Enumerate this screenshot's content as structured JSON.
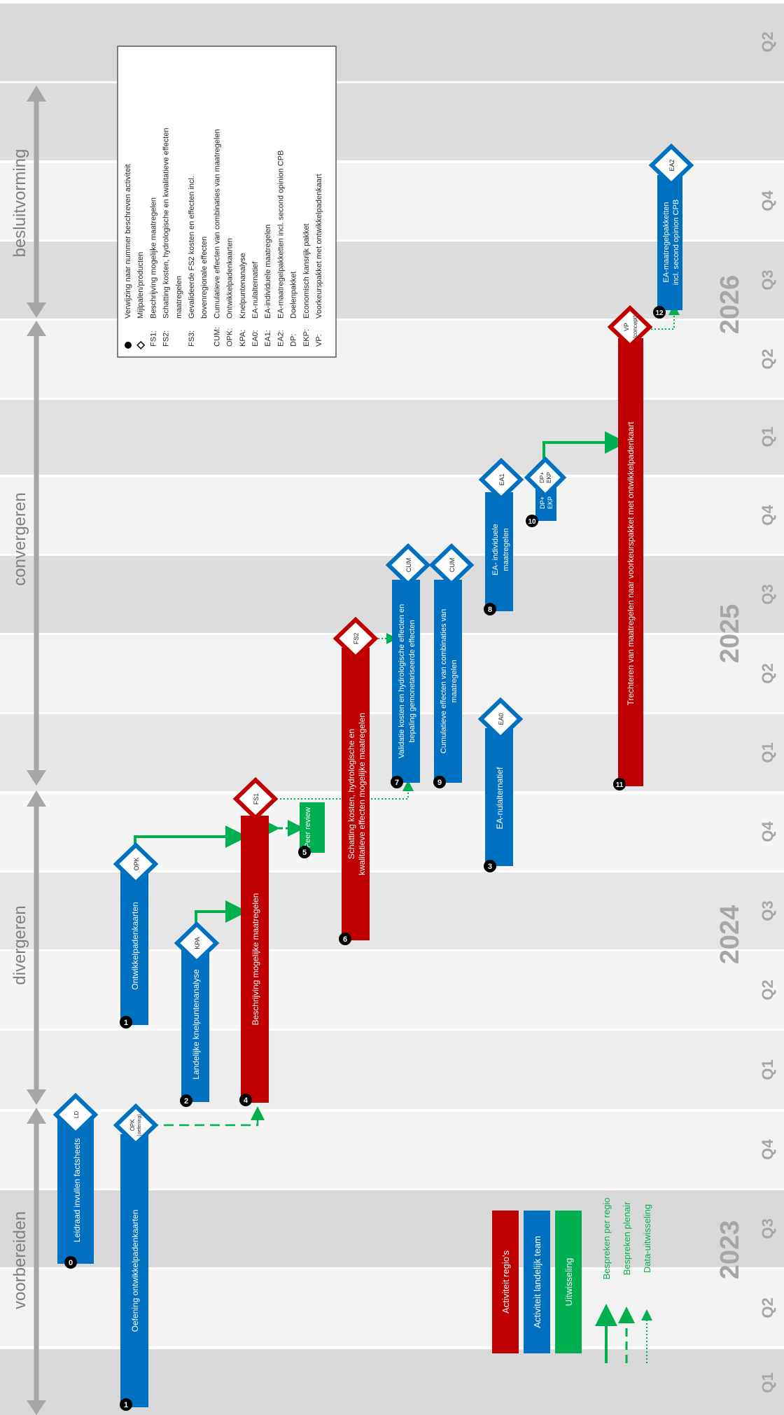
{
  "phases": [
    {
      "label": "voorbereiden"
    },
    {
      "label": "divergeren"
    },
    {
      "label": "convergeren"
    },
    {
      "label": "besluitvorming"
    }
  ],
  "years": [
    {
      "label": "2023"
    },
    {
      "label": "2024"
    },
    {
      "label": "2025"
    },
    {
      "label": "2026"
    }
  ],
  "quarters": [
    "Q1",
    "Q2",
    "Q3",
    "Q4",
    "Q1",
    "Q2",
    "Q3",
    "Q4",
    "Q1",
    "Q2",
    "Q3",
    "Q4",
    "Q1",
    "Q2",
    "Q3",
    "Q4",
    "Q2"
  ],
  "legend_box": {
    "items": [
      {
        "key": "",
        "text": "Verwijzing naar nummer beschreven activiteit",
        "icon": "numbered-circle-icon"
      },
      {
        "key": "",
        "text": "Mijlpalen/producten",
        "icon": "diamond-icon"
      },
      {
        "key": "FS1:",
        "text": "Beschrijving mogelijke maatregelen"
      },
      {
        "key": "FS2:",
        "text": "Schatting kosten, hydrologische en kwalitatieve effecten"
      },
      {
        "key": "",
        "text": "maatregelen"
      },
      {
        "key": "FS3:",
        "text": "Gevalideerde FS2 kosten en effecten  incl."
      },
      {
        "key": "",
        "text": "bovenregionale effecten"
      },
      {
        "key": "CUM:",
        "text": "Cumulatieve effecten  van combinaties van maatregelen"
      },
      {
        "key": "OPK:",
        "text": "Ontwikkelpadenkaarten"
      },
      {
        "key": "KPA:",
        "text": "Knelpuntenanalyse"
      },
      {
        "key": "EA0:",
        "text": "EA-nulalternatief"
      },
      {
        "key": "EA1:",
        "text": "EA-individuele maatregelen"
      },
      {
        "key": "EA2:",
        "text": "EA-maatregelpakketten  incl. second opinion CPB"
      },
      {
        "key": "DP:",
        "text": "Doelenpakket"
      },
      {
        "key": "EKP:",
        "text": "Economisch kansrijk pakket"
      },
      {
        "key": "VP:",
        "text": "Voorkeurspakket met ontwikkelpadenkaart"
      }
    ]
  },
  "activity_legend": [
    {
      "label": "Activiteit regio's",
      "color": "#C00000"
    },
    {
      "label": "Activiteit landelijk team",
      "color": "#0070C0"
    },
    {
      "label": "Uitwisseling",
      "color": "#00B050"
    }
  ],
  "line_legend": [
    {
      "label": "Bespreken per regio",
      "style": "solid"
    },
    {
      "label": "Bespreken plenair",
      "style": "dashed"
    },
    {
      "label": "Data-uitwisseling",
      "style": "dotted"
    }
  ],
  "activities": [
    {
      "num": "0",
      "label": "Leidraad invullen factsheets",
      "milestone": "LD",
      "color": "#0070C0"
    },
    {
      "num": "1",
      "label": "Oefening ontwikkelpadenkaarten",
      "milestone": "OPK",
      "milestone_sub": "(oefening)",
      "color": "#0070C0"
    },
    {
      "num": "1",
      "label": "Ontwikkelpadenkaarten",
      "milestone": "OPK",
      "color": "#0070C0"
    },
    {
      "num": "2",
      "label": "Landelijke knelpuntenanalyse",
      "milestone": "KPA",
      "color": "#0070C0"
    },
    {
      "num": "4",
      "label": "Beschrijving mogelijke maatregelen",
      "milestone": "FS1",
      "color": "#C00000"
    },
    {
      "num": "5",
      "label": "Peer review",
      "color": "#00B050"
    },
    {
      "num": "6",
      "label": "Schatting kosten, hydrologische en",
      "label2": "kwalitatieve effecten mogelijke maatregelen",
      "milestone": "FS2",
      "color": "#C00000"
    },
    {
      "num": "3",
      "label": "EA-nulalternatief",
      "milestone": "EA0",
      "color": "#0070C0"
    },
    {
      "num": "7",
      "label": "Validatie kosten en hydrologische effecten en",
      "label2": "bepaling gemonetariseerde effecten",
      "milestone": "FS3",
      "color": "#0070C0"
    },
    {
      "num": "9",
      "label": "Cumulatieve effecten van combinaties van",
      "label2": "maatregelen",
      "milestone": "CUM",
      "color": "#0070C0"
    },
    {
      "num": "8",
      "label": "EA- individuele",
      "label2": "maatregelen",
      "milestone": "EA1",
      "color": "#0070C0"
    },
    {
      "num": "10",
      "label": "DP+",
      "label2": "EKP",
      "milestone": "DP+",
      "milestone_sub": "EKP",
      "color": "#0070C0"
    },
    {
      "num": "11",
      "label": "Trechteren van maatregelen naar voorkeurspakket met ontwikkelpadenkaart",
      "milestone": "VP",
      "milestone_sub": "(concept)",
      "color": "#C00000"
    },
    {
      "num": "12",
      "label": "EA-maatregelpakketten",
      "label2": "incl. second opinion CPB",
      "milestone": "EA2",
      "color": "#0070C0"
    }
  ]
}
